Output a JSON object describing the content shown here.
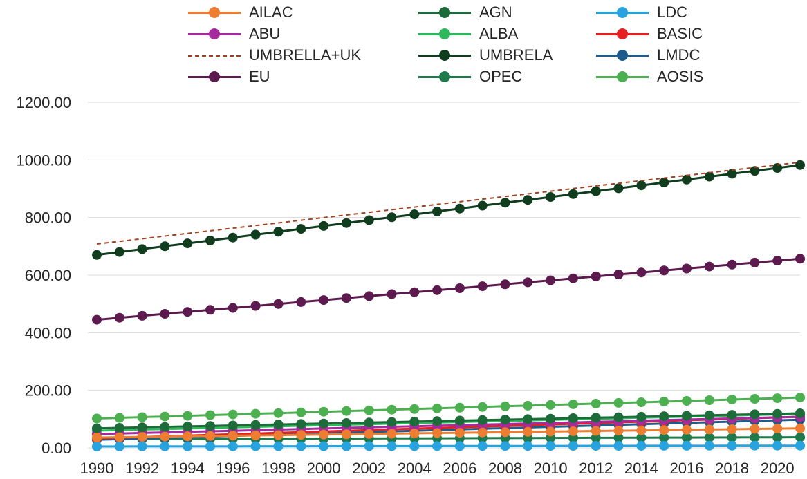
{
  "chart_data": {
    "type": "line",
    "title": "",
    "xlabel": "",
    "ylabel": "",
    "ylim": [
      0,
      1200
    ],
    "y_ticks": [
      "0.00",
      "200.00",
      "400.00",
      "600.00",
      "800.00",
      "1000.00",
      "1200.00"
    ],
    "x": [
      1990,
      1991,
      1992,
      1993,
      1994,
      1995,
      1996,
      1997,
      1998,
      1999,
      2000,
      2001,
      2002,
      2003,
      2004,
      2005,
      2006,
      2007,
      2008,
      2009,
      2010,
      2011,
      2012,
      2013,
      2014,
      2015,
      2016,
      2017,
      2018,
      2019,
      2020,
      2021
    ],
    "x_tick_labels": [
      "1990",
      "1992",
      "1994",
      "1996",
      "1998",
      "2000",
      "2002",
      "2004",
      "2006",
      "2008",
      "2010",
      "2012",
      "2014",
      "2016",
      "2018",
      "2020"
    ],
    "grid": "horizontal",
    "legend_position": "top",
    "series": [
      {
        "name": "AILAC",
        "color": "#ED7D31",
        "style": "line-marker",
        "start": 36,
        "end": 68
      },
      {
        "name": "AGN",
        "color": "#1E6B3A",
        "style": "line-marker",
        "start": 68,
        "end": 120
      },
      {
        "name": "LDC",
        "color": "#29A3DD",
        "style": "line-marker",
        "start": 5,
        "end": 8
      },
      {
        "name": "ABU",
        "color": "#A52A9E",
        "style": "line-marker",
        "start": 48,
        "end": 108
      },
      {
        "name": "ALBA",
        "color": "#2DB85C",
        "style": "line-marker",
        "start": 60,
        "end": 118
      },
      {
        "name": "BASIC",
        "color": "#E52020",
        "style": "line-marker",
        "start": 33,
        "end": 108
      },
      {
        "name": "UMBRELLA+UK",
        "color": "#A0401E",
        "style": "dashed",
        "start": 708,
        "end": 992
      },
      {
        "name": "UMBRELA",
        "color": "#0F3D1E",
        "style": "line-marker",
        "start": 670,
        "end": 982
      },
      {
        "name": "LMDC",
        "color": "#1F5C8C",
        "style": "line-marker",
        "start": 28,
        "end": 98
      },
      {
        "name": "EU",
        "color": "#5C1A4F",
        "style": "line-marker",
        "start": 445,
        "end": 657
      },
      {
        "name": "OPEC",
        "color": "#1E7A4A",
        "style": "line-marker",
        "start": 30,
        "end": 37
      },
      {
        "name": "AOSIS",
        "color": "#4CAF50",
        "style": "line-marker",
        "start": 102,
        "end": 175
      }
    ]
  }
}
